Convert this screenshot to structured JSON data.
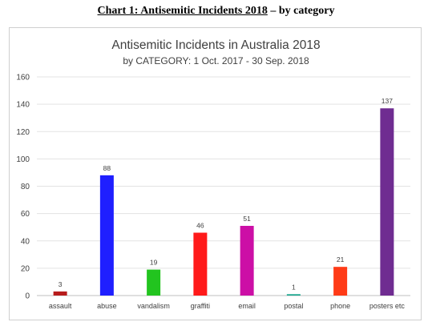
{
  "header": {
    "caption_main": "Chart 1: Antisemitic Incidents 2018",
    "caption_rest": " – by category"
  },
  "chart_data": {
    "type": "bar",
    "title": "Antisemitic Incidents in Australia 2018",
    "subtitle": "by CATEGORY: 1 Oct. 2017 - 30 Sep. 2018",
    "xlabel": "",
    "ylabel": "",
    "ylim": [
      0,
      160
    ],
    "yticks": [
      0,
      20,
      40,
      60,
      80,
      100,
      120,
      140,
      160
    ],
    "grid": true,
    "legend": "none",
    "categories": [
      "assault",
      "abuse",
      "vandalism",
      "graffiti",
      "email",
      "postal",
      "phone",
      "posters etc"
    ],
    "values": [
      3,
      88,
      19,
      46,
      51,
      1,
      21,
      137
    ],
    "colors": [
      "#b71c1c",
      "#1f1fff",
      "#22c41f",
      "#ff1a1a",
      "#cc0fa6",
      "#19a68e",
      "#ff3b17",
      "#6f2c91"
    ]
  }
}
